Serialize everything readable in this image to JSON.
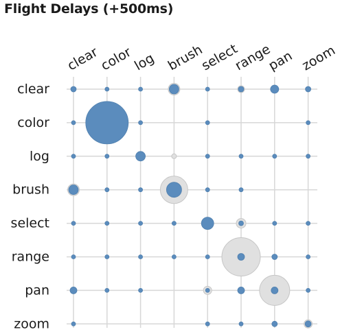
{
  "chart_data": {
    "type": "scatter",
    "title": "Flight Delays (+500ms)",
    "columns": [
      "clear",
      "color",
      "log",
      "brush",
      "select",
      "range",
      "pan",
      "zoom"
    ],
    "rows": [
      "clear",
      "color",
      "log",
      "brush",
      "select",
      "range",
      "pan",
      "zoom"
    ],
    "colors": {
      "blue": "#5b8cbd",
      "grey": "#e0e0e0",
      "grey_stroke": "#c6c6c6",
      "grid": "#d7d7d7"
    },
    "cells": [
      {
        "row": "clear",
        "col": "clear",
        "blue": 4,
        "grey": 0
      },
      {
        "row": "clear",
        "col": "color",
        "blue": 3,
        "grey": 0
      },
      {
        "row": "clear",
        "col": "log",
        "blue": 3,
        "grey": 0
      },
      {
        "row": "clear",
        "col": "brush",
        "blue": 7,
        "grey": 8.5
      },
      {
        "row": "clear",
        "col": "select",
        "blue": 3,
        "grey": 0
      },
      {
        "row": "clear",
        "col": "range",
        "blue": 4,
        "grey": 5
      },
      {
        "row": "clear",
        "col": "pan",
        "blue": 6,
        "grey": 0
      },
      {
        "row": "clear",
        "col": "zoom",
        "blue": 4,
        "grey": 0
      },
      {
        "row": "color",
        "col": "clear",
        "blue": 3,
        "grey": 0
      },
      {
        "row": "color",
        "col": "color",
        "blue": 31,
        "grey": 0
      },
      {
        "row": "color",
        "col": "log",
        "blue": 3,
        "grey": 0
      },
      {
        "row": "color",
        "col": "select",
        "blue": 3,
        "grey": 0
      },
      {
        "row": "color",
        "col": "zoom",
        "blue": 3,
        "grey": 0
      },
      {
        "row": "log",
        "col": "clear",
        "blue": 3,
        "grey": 0
      },
      {
        "row": "log",
        "col": "color",
        "blue": 3,
        "grey": 0
      },
      {
        "row": "log",
        "col": "log",
        "blue": 7,
        "grey": 0
      },
      {
        "row": "log",
        "col": "brush",
        "blue": 0,
        "grey": 3.5
      },
      {
        "row": "log",
        "col": "select",
        "blue": 3,
        "grey": 0
      },
      {
        "row": "log",
        "col": "range",
        "blue": 3,
        "grey": 0
      },
      {
        "row": "log",
        "col": "pan",
        "blue": 3,
        "grey": 0
      },
      {
        "row": "log",
        "col": "zoom",
        "blue": 3,
        "grey": 0
      },
      {
        "row": "brush",
        "col": "clear",
        "blue": 7,
        "grey": 8.5
      },
      {
        "row": "brush",
        "col": "color",
        "blue": 3,
        "grey": 0
      },
      {
        "row": "brush",
        "col": "log",
        "blue": 3,
        "grey": 0
      },
      {
        "row": "brush",
        "col": "brush",
        "blue": 11,
        "grey": 20
      },
      {
        "row": "brush",
        "col": "select",
        "blue": 3,
        "grey": 0
      },
      {
        "row": "brush",
        "col": "range",
        "blue": 3,
        "grey": 0
      },
      {
        "row": "select",
        "col": "clear",
        "blue": 3,
        "grey": 0
      },
      {
        "row": "select",
        "col": "color",
        "blue": 3,
        "grey": 0
      },
      {
        "row": "select",
        "col": "log",
        "blue": 3,
        "grey": 0
      },
      {
        "row": "select",
        "col": "brush",
        "blue": 3,
        "grey": 0
      },
      {
        "row": "select",
        "col": "select",
        "blue": 9,
        "grey": 0
      },
      {
        "row": "select",
        "col": "range",
        "blue": 3.5,
        "grey": 7
      },
      {
        "row": "select",
        "col": "pan",
        "blue": 3,
        "grey": 0
      },
      {
        "row": "select",
        "col": "zoom",
        "blue": 3,
        "grey": 0
      },
      {
        "row": "range",
        "col": "clear",
        "blue": 3,
        "grey": 0
      },
      {
        "row": "range",
        "col": "color",
        "blue": 3,
        "grey": 0
      },
      {
        "row": "range",
        "col": "log",
        "blue": 3,
        "grey": 0
      },
      {
        "row": "range",
        "col": "brush",
        "blue": 3,
        "grey": 0
      },
      {
        "row": "range",
        "col": "select",
        "blue": 3,
        "grey": 0
      },
      {
        "row": "range",
        "col": "range",
        "blue": 5,
        "grey": 28
      },
      {
        "row": "range",
        "col": "pan",
        "blue": 4,
        "grey": 0
      },
      {
        "row": "range",
        "col": "zoom",
        "blue": 3,
        "grey": 0
      },
      {
        "row": "pan",
        "col": "clear",
        "blue": 5,
        "grey": 0
      },
      {
        "row": "pan",
        "col": "color",
        "blue": 3,
        "grey": 0
      },
      {
        "row": "pan",
        "col": "log",
        "blue": 3,
        "grey": 0
      },
      {
        "row": "pan",
        "col": "select",
        "blue": 3,
        "grey": 6
      },
      {
        "row": "pan",
        "col": "range",
        "blue": 5,
        "grey": 0
      },
      {
        "row": "pan",
        "col": "pan",
        "blue": 5,
        "grey": 22
      },
      {
        "row": "pan",
        "col": "zoom",
        "blue": 3,
        "grey": 0
      },
      {
        "row": "zoom",
        "col": "clear",
        "blue": 3,
        "grey": 0
      },
      {
        "row": "zoom",
        "col": "select",
        "blue": 3,
        "grey": 0
      },
      {
        "row": "zoom",
        "col": "range",
        "blue": 3,
        "grey": 0
      },
      {
        "row": "zoom",
        "col": "pan",
        "blue": 4,
        "grey": 0
      },
      {
        "row": "zoom",
        "col": "zoom",
        "blue": 4.5,
        "grey": 6
      }
    ]
  }
}
